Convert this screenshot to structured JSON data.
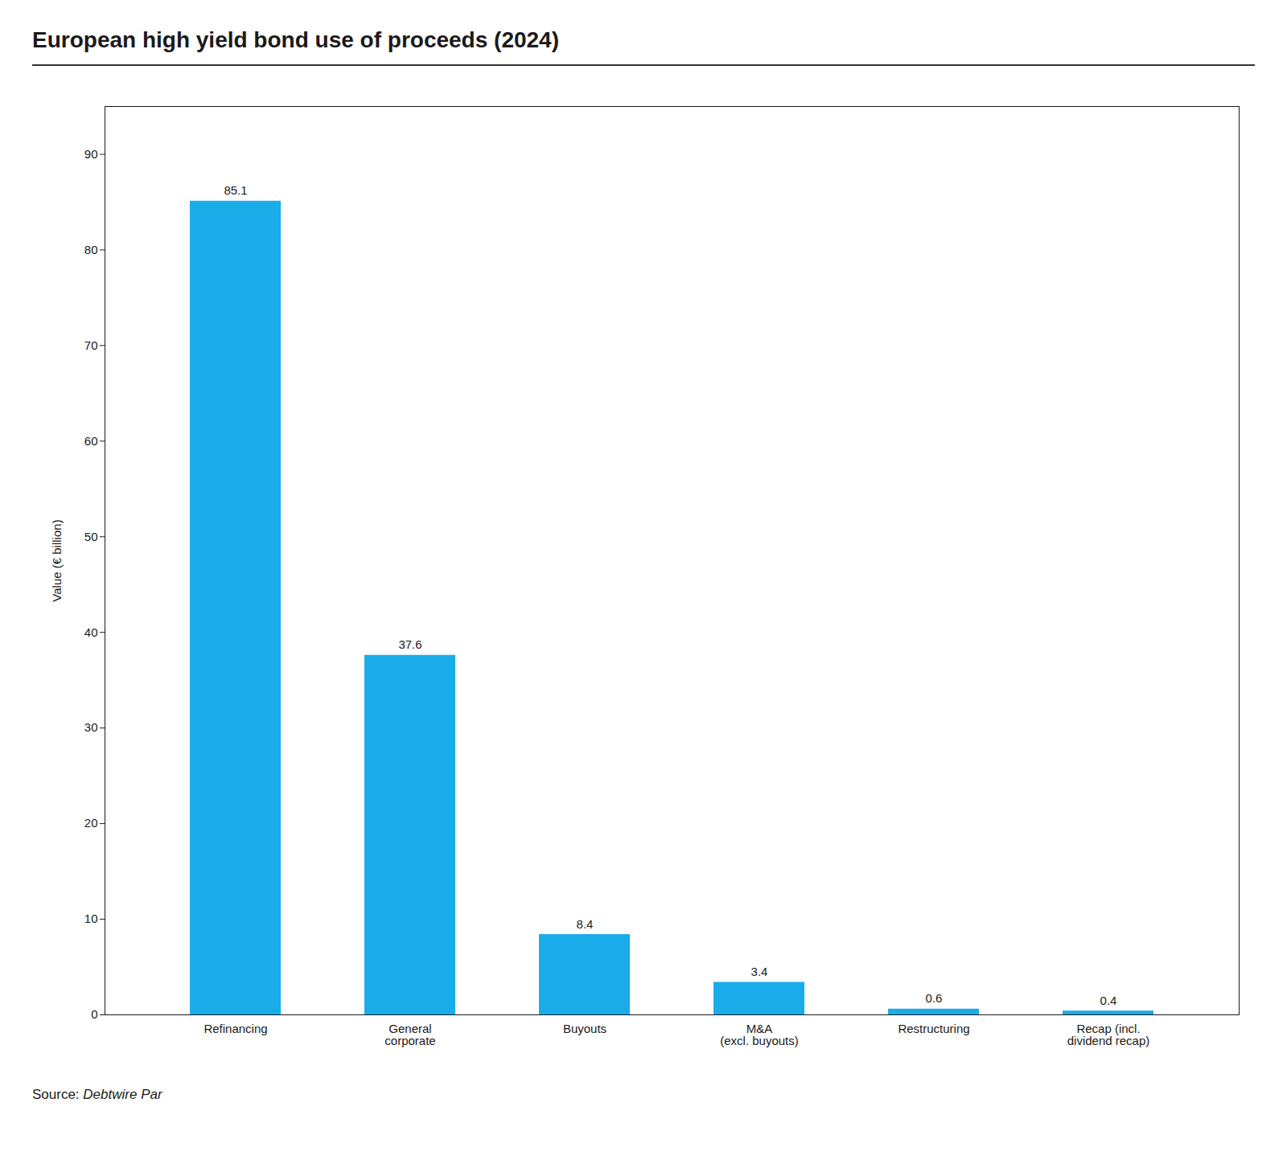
{
  "chart_data": {
    "type": "bar",
    "title": "European high yield bond use of proceeds (2024)",
    "categories": [
      "Refinancing",
      "General\ncorporate",
      "Buyouts",
      "M&A\n(excl. buyouts)",
      "Restructuring",
      "Recap (incl.\ndividend recap)"
    ],
    "values": [
      85.1,
      37.6,
      8.4,
      3.4,
      0.6,
      0.4
    ],
    "color": "#1AACE8",
    "ylabel": "Value (€ billion)",
    "ylim": [
      0,
      95
    ],
    "yticks": [
      0,
      10,
      20,
      30,
      40,
      50,
      60,
      70,
      80,
      90
    ],
    "grid": false,
    "data_labels": true,
    "source_prefix": "Source:",
    "source": "Debtwire Par"
  }
}
